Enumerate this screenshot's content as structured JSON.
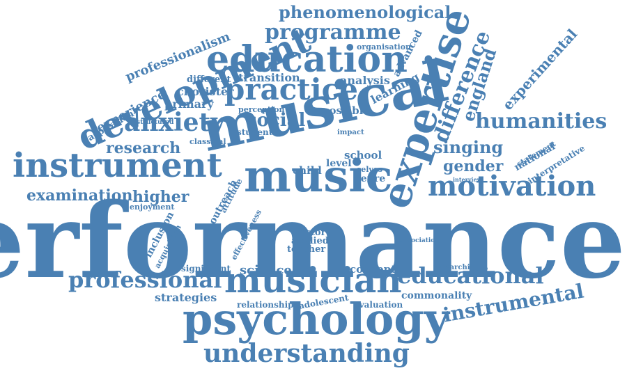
{
  "colors": {
    "word": "#4a80b3",
    "background": "#ffffff"
  },
  "words": [
    "performance",
    "musical",
    "music",
    "expertise",
    "psychology",
    "musician",
    "education",
    "instrument",
    "development",
    "practice",
    "motivation",
    "anxiety",
    "understanding",
    "professional",
    "educational",
    "instrumental",
    "programme",
    "humanities",
    "difference",
    "phenomenological",
    "examination",
    "research",
    "social",
    "singing",
    "gender",
    "england",
    "experimental",
    "professionalism",
    "experience",
    "aspiration",
    "chorister",
    "primary",
    "analysis",
    "transition",
    "different",
    "learning",
    "advanced",
    "organisation",
    "possible",
    "perception",
    "student",
    "classical",
    "structured",
    "school",
    "level",
    "child",
    "selves",
    "genre",
    "impact",
    "higher",
    "enjoyment",
    "inclusion",
    "acquisition",
    "outreach",
    "attitude",
    "effectiveness",
    "factor",
    "applied",
    "teacher",
    "science",
    "concept",
    "significant",
    "strategies",
    "relationship",
    "adolescent",
    "evaluation",
    "commonality",
    "researching",
    "statement",
    "national",
    "interpretative",
    "interview",
    "association"
  ]
}
